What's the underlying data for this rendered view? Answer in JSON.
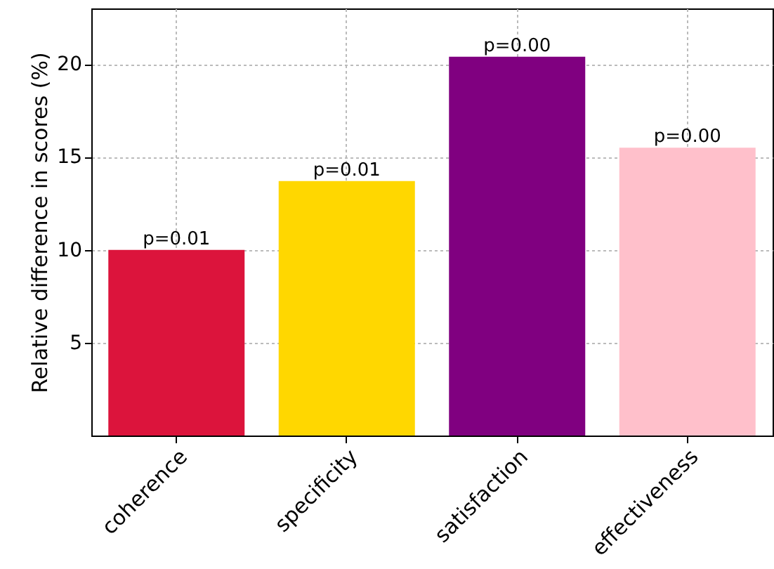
{
  "chart_data": {
    "type": "bar",
    "ylabel": "Relative difference in scores (%)",
    "categories": [
      "coherence",
      "specificity",
      "satisfaction",
      "effectiveness"
    ],
    "values": [
      10.0,
      13.7,
      20.4,
      15.5
    ],
    "colors": [
      "#dc143c",
      "#ffd700",
      "#800080",
      "#ffc0cb"
    ],
    "ylim": [
      0,
      23
    ],
    "yticks": [
      5,
      10,
      15,
      20
    ],
    "grid": true,
    "annotations": [
      {
        "text": "p=0.01",
        "x": "coherence",
        "y": 10.0
      },
      {
        "text": "p=0.01",
        "x": "specificity",
        "y": 13.7
      },
      {
        "text": "p=0.00",
        "x": "satisfaction",
        "y": 20.4
      },
      {
        "text": "p=0.00",
        "x": "effectiveness",
        "y": 15.5
      }
    ]
  }
}
